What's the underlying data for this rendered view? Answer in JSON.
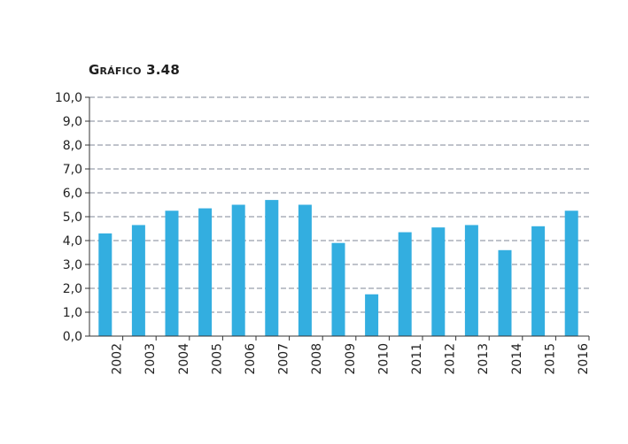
{
  "chart_data": {
    "type": "bar",
    "title": "Gráfico 3.48",
    "categories": [
      "2002",
      "2003",
      "2004",
      "2005",
      "2006",
      "2007",
      "2008",
      "2009",
      "2010",
      "2011",
      "2012",
      "2013",
      "2014",
      "2015",
      "2016"
    ],
    "values": [
      4.3,
      4.65,
      5.25,
      5.35,
      5.5,
      5.7,
      5.5,
      3.9,
      1.75,
      4.35,
      4.55,
      4.65,
      3.6,
      4.6,
      5.25
    ],
    "yticks": [
      "0,0",
      "1,0",
      "2,0",
      "3,0",
      "4,0",
      "5,0",
      "6,0",
      "7,0",
      "8,0",
      "9,0",
      "10,0"
    ],
    "ylim": [
      0,
      10
    ],
    "xlabel": "",
    "ylabel": "",
    "grid": true,
    "bar_color": "#33aee0"
  }
}
